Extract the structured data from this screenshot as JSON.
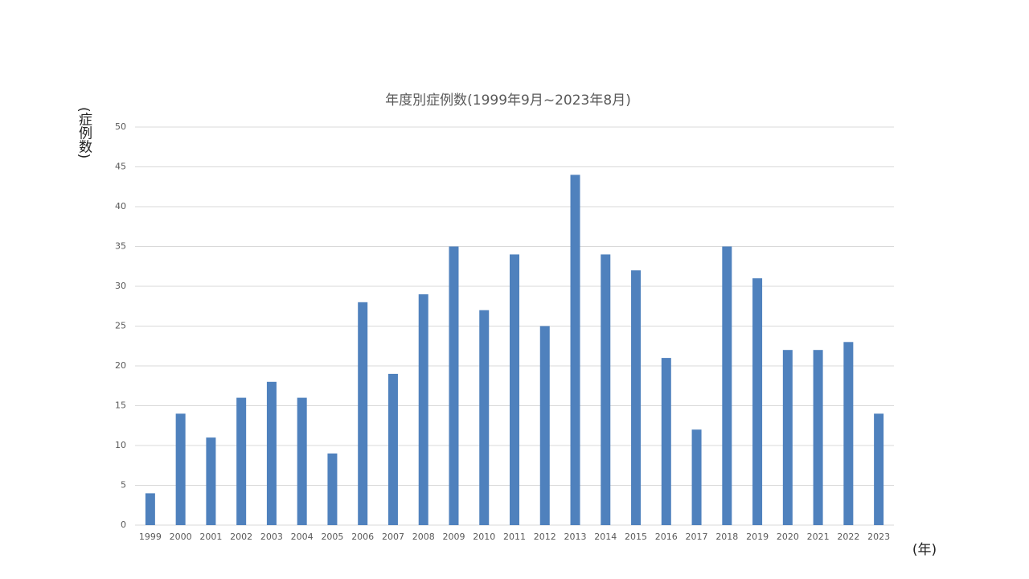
{
  "chart_data": {
    "type": "bar",
    "title": "年度別症例数(1999年9月~2023年8月)",
    "y_label": "(症例数)",
    "x_label": "(年)",
    "categories": [
      "1999",
      "2000",
      "2001",
      "2002",
      "2003",
      "2004",
      "2005",
      "2006",
      "2007",
      "2008",
      "2009",
      "2010",
      "2011",
      "2012",
      "2013",
      "2014",
      "2015",
      "2016",
      "2017",
      "2018",
      "2019",
      "2020",
      "2021",
      "2022",
      "2023"
    ],
    "values": [
      4,
      14,
      11,
      16,
      18,
      16,
      9,
      28,
      19,
      29,
      35,
      27,
      34,
      25,
      44,
      34,
      32,
      21,
      12,
      35,
      31,
      22,
      22,
      23,
      14
    ],
    "color": "#4f81bd",
    "ylim": [
      0,
      50
    ],
    "yticks": [
      0,
      5,
      10,
      15,
      20,
      25,
      30,
      35,
      40,
      45,
      50
    ],
    "grid": true
  }
}
